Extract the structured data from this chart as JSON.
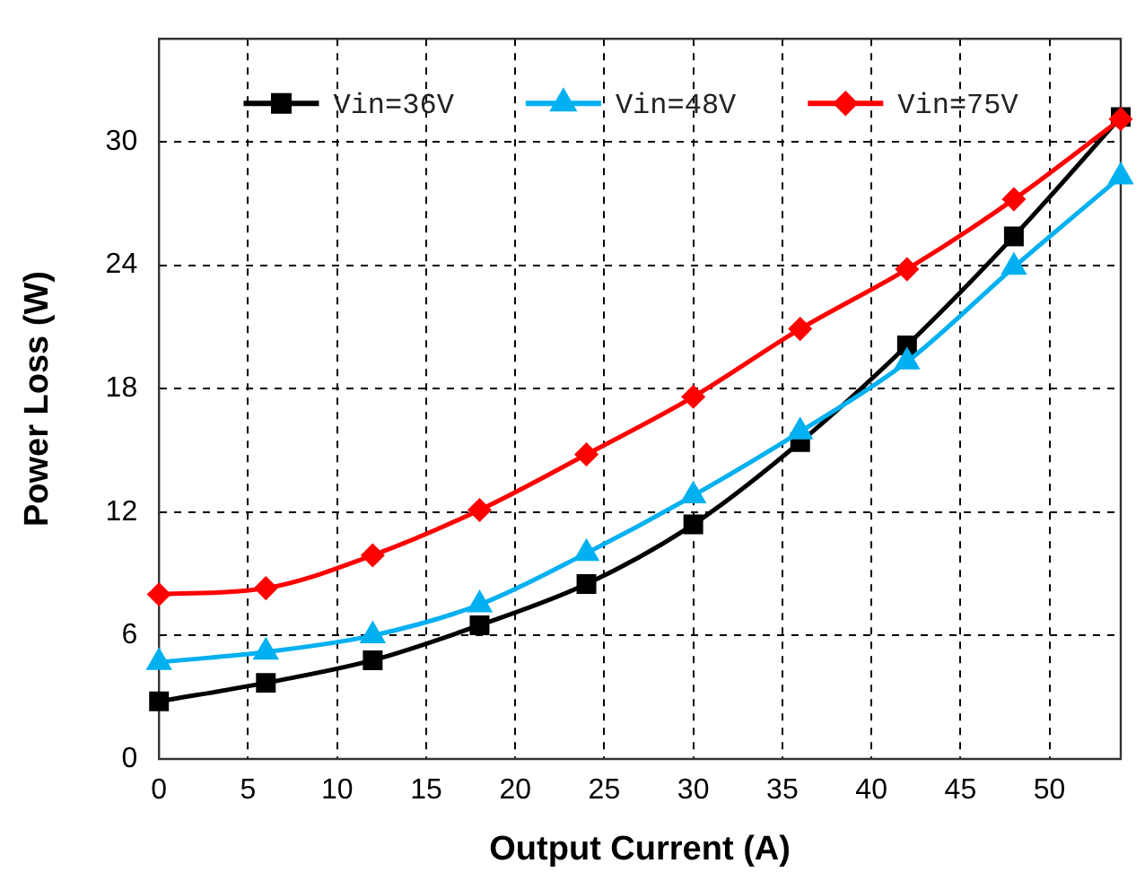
{
  "chart_data": {
    "type": "line",
    "xlabel": "Output Current (A)",
    "ylabel": "Power Loss (W)",
    "x": [
      0,
      6,
      12,
      18,
      24,
      30,
      36,
      42,
      48,
      54
    ],
    "series": [
      {
        "name": "Vin=36V",
        "color": "#000000",
        "marker": "square",
        "values": [
          2.8,
          3.7,
          4.8,
          6.5,
          8.5,
          11.4,
          15.4,
          20.1,
          25.4,
          31.2
        ]
      },
      {
        "name": "Vin=48V",
        "color": "#00b0f0",
        "marker": "triangle",
        "values": [
          4.7,
          5.2,
          6.0,
          7.5,
          10.0,
          12.8,
          15.9,
          19.3,
          23.9,
          28.3
        ]
      },
      {
        "name": "Vin=75V",
        "color": "#ff0000",
        "marker": "diamond",
        "values": [
          8.0,
          8.3,
          9.9,
          12.1,
          14.8,
          17.6,
          20.9,
          23.8,
          27.2,
          31.1
        ]
      }
    ],
    "xlim": [
      0,
      54
    ],
    "xticks": [
      0,
      5,
      10,
      15,
      20,
      25,
      30,
      35,
      40,
      45,
      50
    ],
    "ylim": [
      0,
      35
    ],
    "yticks": [
      0,
      6,
      12,
      18,
      24,
      30
    ],
    "grid": true,
    "legend": "top",
    "line_style": "solid"
  }
}
